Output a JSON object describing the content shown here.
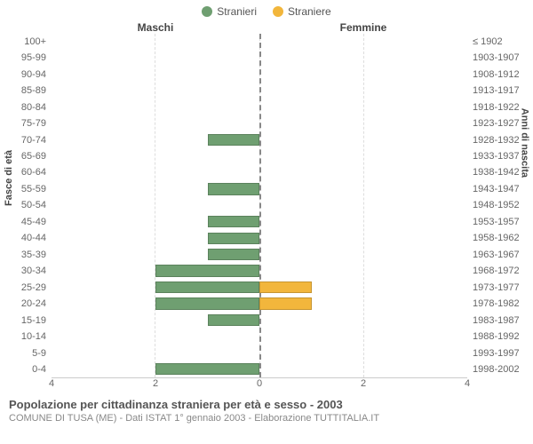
{
  "chart": {
    "type": "population-pyramid",
    "legend": [
      {
        "label": "Stranieri",
        "color": "#6f9f71"
      },
      {
        "label": "Straniere",
        "color": "#f2b63c"
      }
    ],
    "left_header": "Maschi",
    "right_header": "Femmine",
    "y_left_title": "Fasce di età",
    "y_right_title": "Anni di nascita",
    "x_max": 4,
    "x_ticks_left": [
      4,
      2,
      0
    ],
    "x_ticks_right": [
      0,
      2,
      4
    ],
    "grid_color": "#dddddd",
    "center_line_color": "#888888",
    "bar_border": "rgba(0,0,0,0.18)",
    "male_color": "#6f9f71",
    "female_color": "#f2b63c",
    "rows": [
      {
        "age": "100+",
        "birth": "≤ 1902",
        "m": 0,
        "f": 0
      },
      {
        "age": "95-99",
        "birth": "1903-1907",
        "m": 0,
        "f": 0
      },
      {
        "age": "90-94",
        "birth": "1908-1912",
        "m": 0,
        "f": 0
      },
      {
        "age": "85-89",
        "birth": "1913-1917",
        "m": 0,
        "f": 0
      },
      {
        "age": "80-84",
        "birth": "1918-1922",
        "m": 0,
        "f": 0
      },
      {
        "age": "75-79",
        "birth": "1923-1927",
        "m": 0,
        "f": 0
      },
      {
        "age": "70-74",
        "birth": "1928-1932",
        "m": 1,
        "f": 0
      },
      {
        "age": "65-69",
        "birth": "1933-1937",
        "m": 0,
        "f": 0
      },
      {
        "age": "60-64",
        "birth": "1938-1942",
        "m": 0,
        "f": 0
      },
      {
        "age": "55-59",
        "birth": "1943-1947",
        "m": 1,
        "f": 0
      },
      {
        "age": "50-54",
        "birth": "1948-1952",
        "m": 0,
        "f": 0
      },
      {
        "age": "45-49",
        "birth": "1953-1957",
        "m": 1,
        "f": 0
      },
      {
        "age": "40-44",
        "birth": "1958-1962",
        "m": 1,
        "f": 0
      },
      {
        "age": "35-39",
        "birth": "1963-1967",
        "m": 1,
        "f": 0
      },
      {
        "age": "30-34",
        "birth": "1968-1972",
        "m": 2,
        "f": 0
      },
      {
        "age": "25-29",
        "birth": "1973-1977",
        "m": 2,
        "f": 1
      },
      {
        "age": "20-24",
        "birth": "1978-1982",
        "m": 2,
        "f": 1
      },
      {
        "age": "15-19",
        "birth": "1983-1987",
        "m": 1,
        "f": 0
      },
      {
        "age": "10-14",
        "birth": "1988-1992",
        "m": 0,
        "f": 0
      },
      {
        "age": "5-9",
        "birth": "1993-1997",
        "m": 0,
        "f": 0
      },
      {
        "age": "0-4",
        "birth": "1998-2002",
        "m": 2,
        "f": 0
      }
    ]
  },
  "footer": {
    "title": "Popolazione per cittadinanza straniera per età e sesso - 2003",
    "subtitle": "COMUNE DI TUSA (ME) - Dati ISTAT 1° gennaio 2003 - Elaborazione TUTTITALIA.IT"
  }
}
